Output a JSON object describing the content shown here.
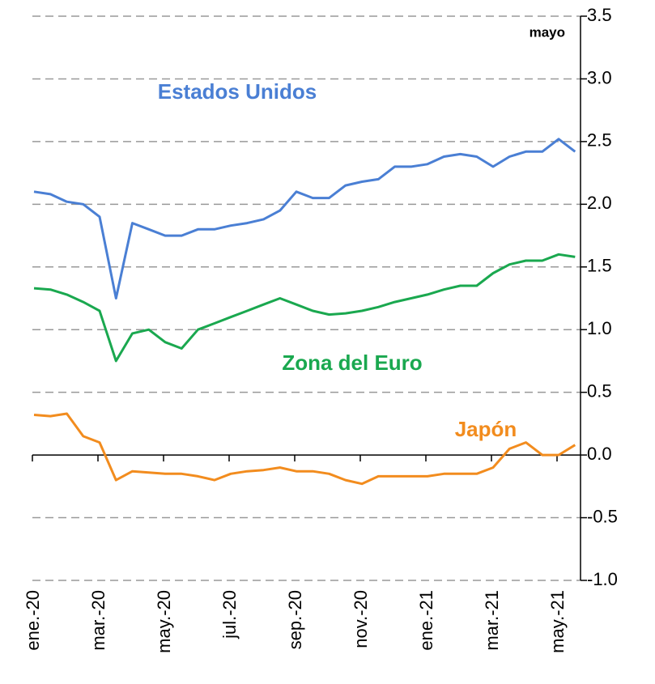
{
  "chart_data": {
    "type": "line",
    "annotations": {
      "corner": "mayo",
      "us": "Estados Unidos",
      "euro": "Zona del Euro",
      "japan": "Japón"
    },
    "categories": [
      "ene.-20",
      null,
      null,
      null,
      "mar.-20",
      null,
      null,
      null,
      "may.-20",
      null,
      null,
      null,
      "jul.-20",
      null,
      null,
      null,
      "sep.-20",
      null,
      null,
      null,
      "nov.-20",
      null,
      null,
      null,
      "ene.-21",
      null,
      null,
      null,
      "mar.-21",
      null,
      null,
      null,
      "may.-21",
      null
    ],
    "series": [
      {
        "name": "Estados Unidos",
        "color": "#4a7fd4",
        "values": [
          2.1,
          2.08,
          2.02,
          2.0,
          1.9,
          1.25,
          1.85,
          1.8,
          1.75,
          1.75,
          1.8,
          1.8,
          1.83,
          1.85,
          1.88,
          1.95,
          2.1,
          2.05,
          2.05,
          2.15,
          2.18,
          2.2,
          2.3,
          2.3,
          2.32,
          2.38,
          2.4,
          2.38,
          2.3,
          2.38,
          2.42,
          2.42,
          2.52,
          2.42
        ]
      },
      {
        "name": "Zona del Euro",
        "color": "#1aa84f",
        "values": [
          1.33,
          1.32,
          1.28,
          1.22,
          1.15,
          0.75,
          0.97,
          1.0,
          0.9,
          0.85,
          1.0,
          1.05,
          1.1,
          1.15,
          1.2,
          1.25,
          1.2,
          1.15,
          1.12,
          1.13,
          1.15,
          1.18,
          1.22,
          1.25,
          1.28,
          1.32,
          1.35,
          1.35,
          1.45,
          1.52,
          1.55,
          1.55,
          1.6,
          1.58
        ]
      },
      {
        "name": "Japón",
        "color": "#f28c1e",
        "values": [
          0.32,
          0.31,
          0.33,
          0.15,
          0.1,
          -0.2,
          -0.13,
          -0.14,
          -0.15,
          -0.15,
          -0.17,
          -0.2,
          -0.15,
          -0.13,
          -0.12,
          -0.1,
          -0.13,
          -0.13,
          -0.15,
          -0.2,
          -0.23,
          -0.17,
          -0.17,
          -0.17,
          -0.17,
          -0.15,
          -0.15,
          -0.15,
          -0.1,
          0.05,
          0.1,
          0.0,
          0.0,
          0.08
        ]
      }
    ],
    "ylim": [
      -1,
      3.5
    ],
    "yticks": [
      3.5,
      {
        "value": 3,
        "label": "3.0"
      },
      2.5,
      {
        "value": 2,
        "label": "2.0"
      },
      1.5,
      {
        "value": 1,
        "label": "1.0"
      },
      0.5,
      {
        "value": 0,
        "label": "0.0"
      },
      -0.5,
      {
        "value": -1,
        "label": "-1.0"
      }
    ],
    "grid": true
  }
}
